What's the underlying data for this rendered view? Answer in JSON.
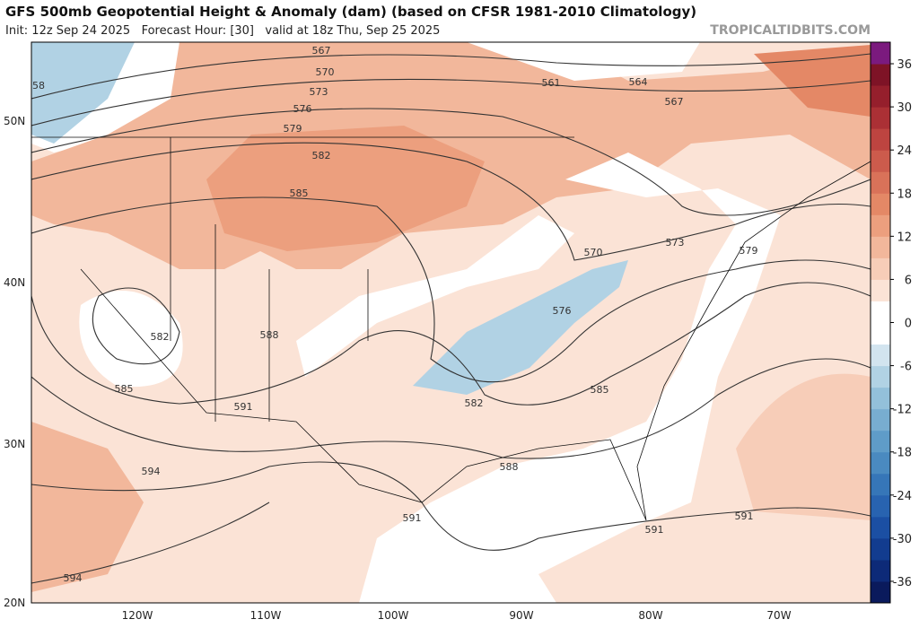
{
  "header": {
    "title": "GFS 500mb Geopotential Height & Anomaly (dam) (based on CFSR 1981-2010 Climatology)",
    "subtitle": "Init: 12z Sep 24 2025   Forecast Hour: [30]   valid at 18z Thu, Sep 25 2025",
    "credit": "TROPICALTIDBITS.COM"
  },
  "map": {
    "lat_labels": [
      "50N",
      "40N",
      "30N",
      "20N"
    ],
    "lon_labels": [
      "120W",
      "110W",
      "100W",
      "90W",
      "80W",
      "70W"
    ],
    "contour_labels": [
      567,
      570,
      573,
      576,
      579,
      582,
      585,
      561,
      564,
      567,
      573,
      579,
      570,
      576,
      585,
      582,
      588,
      582,
      585,
      591,
      594,
      594,
      588,
      591,
      591,
      591,
      58
    ]
  },
  "colorbar": {
    "clim": [
      -39,
      39
    ],
    "ticks": [
      36,
      30,
      24,
      18,
      12,
      6,
      0,
      -6,
      -12,
      -18,
      -24,
      -30,
      -36
    ],
    "colors": [
      "#0a1a5c",
      "#0d2a78",
      "#123c8f",
      "#1b4fa3",
      "#2863b0",
      "#3676b8",
      "#4a8ac0",
      "#5f9cc8",
      "#78add0",
      "#93c0da",
      "#b1d2e4",
      "#d2e4ef",
      "#ffffff",
      "#ffffff",
      "#fbe3d6",
      "#f7cdb8",
      "#f2b79b",
      "#ec9f7e",
      "#e48866",
      "#d97259",
      "#cc5b4c",
      "#bd4440",
      "#ab3035",
      "#951f2c",
      "#7e1326",
      "#7b1a7e"
    ]
  }
}
